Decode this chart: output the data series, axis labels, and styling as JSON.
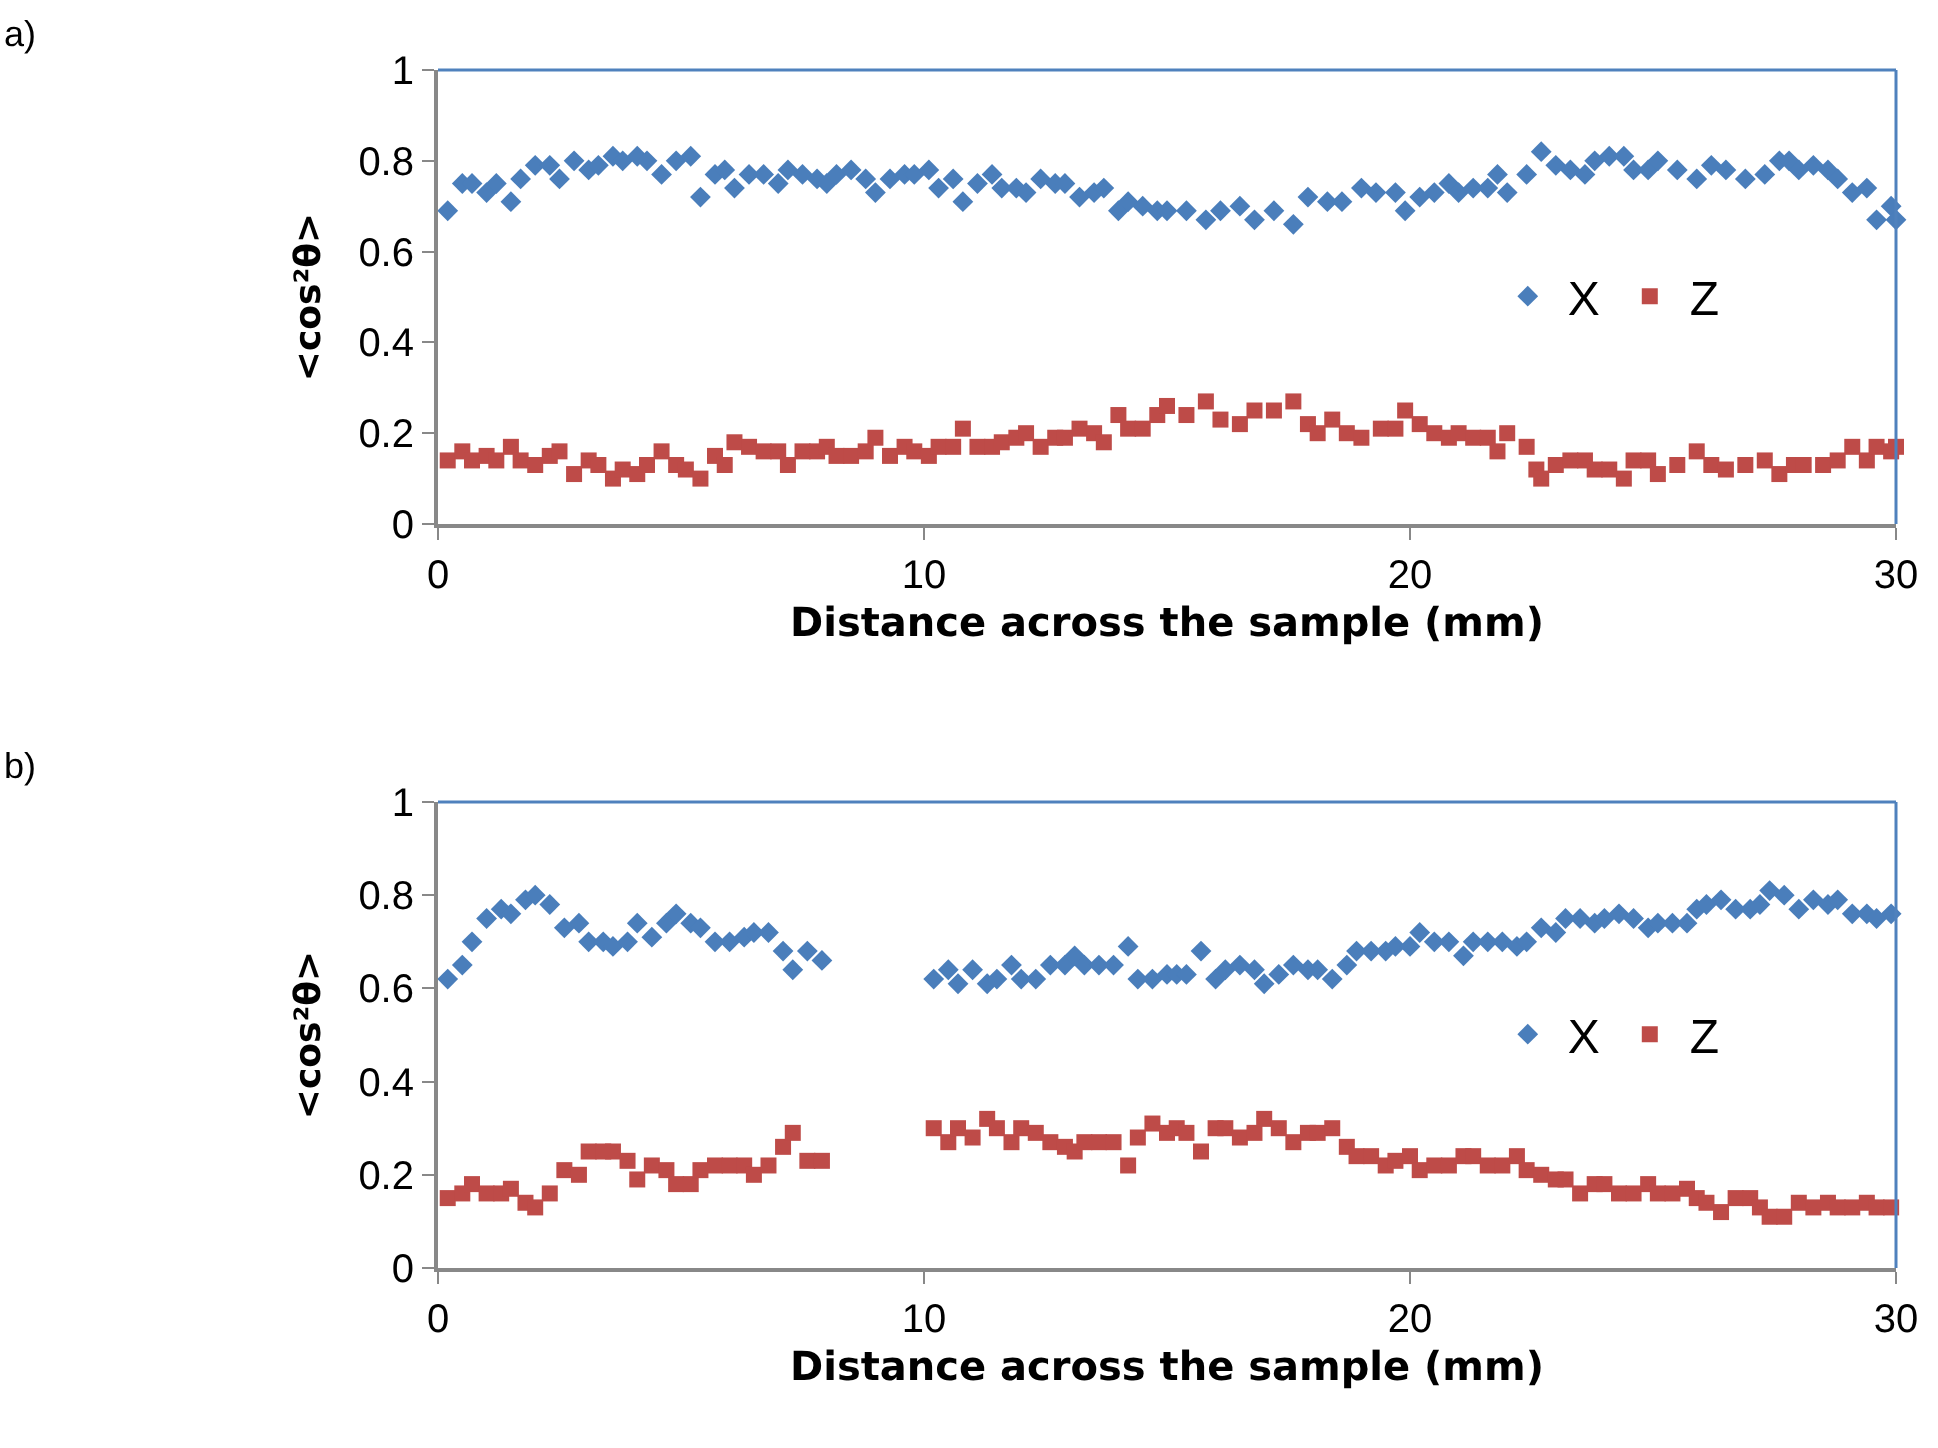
{
  "chart_data": [
    {
      "type": "scatter",
      "annotations": [
        "a)"
      ],
      "xlabel": "Distance across the sample (mm)",
      "ylabel": "<cos²θ>",
      "xlim": [
        0,
        30
      ],
      "xticks": [
        0,
        10,
        20,
        30
      ],
      "ylim": [
        0,
        1
      ],
      "yticks": [
        0,
        0.2,
        0.4,
        0.6,
        0.8,
        1
      ],
      "legend": "right",
      "series": [
        {
          "name": "X",
          "color": "#4a7ebb",
          "marker": "diamond",
          "x": [
            0.2,
            0.5,
            0.7,
            1.0,
            1.2,
            1.5,
            1.7,
            2.0,
            2.3,
            2.5,
            2.8,
            3.1,
            3.3,
            3.6,
            3.8,
            4.1,
            4.3,
            4.6,
            4.9,
            5.2,
            5.4,
            5.7,
            5.9,
            6.1,
            6.4,
            6.7,
            7.0,
            7.2,
            7.5,
            7.8,
            8.0,
            8.2,
            8.5,
            8.8,
            9.0,
            9.3,
            9.6,
            9.8,
            10.1,
            10.3,
            10.6,
            10.8,
            11.1,
            11.4,
            11.6,
            11.9,
            12.1,
            12.4,
            12.7,
            12.9,
            13.2,
            13.5,
            13.7,
            14.0,
            14.2,
            14.5,
            14.8,
            15.0,
            15.4,
            15.8,
            16.1,
            16.5,
            16.8,
            17.2,
            17.6,
            17.9,
            18.3,
            18.6,
            19.0,
            19.3,
            19.7,
            19.9,
            20.2,
            20.5,
            20.8,
            21.0,
            21.3,
            21.6,
            21.8,
            22.0,
            22.4,
            22.7,
            23.0,
            23.3,
            23.6,
            23.8,
            24.1,
            24.4,
            24.6,
            24.9,
            25.1,
            25.5,
            25.9,
            26.2,
            26.5,
            26.9,
            27.3,
            27.6,
            27.8,
            28.0,
            28.3,
            28.6,
            28.8,
            29.1,
            29.4,
            29.6,
            29.9,
            30.0
          ],
          "values": [
            0.69,
            0.75,
            0.75,
            0.73,
            0.75,
            0.71,
            0.76,
            0.79,
            0.79,
            0.76,
            0.8,
            0.78,
            0.79,
            0.81,
            0.8,
            0.81,
            0.8,
            0.77,
            0.8,
            0.81,
            0.72,
            0.77,
            0.78,
            0.74,
            0.77,
            0.77,
            0.75,
            0.78,
            0.77,
            0.76,
            0.75,
            0.77,
            0.78,
            0.76,
            0.73,
            0.76,
            0.77,
            0.77,
            0.78,
            0.74,
            0.76,
            0.71,
            0.75,
            0.77,
            0.74,
            0.74,
            0.73,
            0.76,
            0.75,
            0.75,
            0.72,
            0.73,
            0.74,
            0.69,
            0.71,
            0.7,
            0.69,
            0.69,
            0.69,
            0.67,
            0.69,
            0.7,
            0.67,
            0.69,
            0.66,
            0.72,
            0.71,
            0.71,
            0.74,
            0.73,
            0.73,
            0.69,
            0.72,
            0.73,
            0.75,
            0.73,
            0.74,
            0.74,
            0.77,
            0.73,
            0.77,
            0.82,
            0.79,
            0.78,
            0.77,
            0.8,
            0.81,
            0.81,
            0.78,
            0.78,
            0.8,
            0.78,
            0.76,
            0.79,
            0.78,
            0.76,
            0.77,
            0.8,
            0.8,
            0.78,
            0.79,
            0.78,
            0.76,
            0.73,
            0.74,
            0.67,
            0.7,
            0.67
          ]
        },
        {
          "name": "Z",
          "color": "#be4b48",
          "marker": "square",
          "x": [
            0.2,
            0.5,
            0.7,
            1.0,
            1.2,
            1.5,
            1.7,
            2.0,
            2.3,
            2.5,
            2.8,
            3.1,
            3.3,
            3.6,
            3.8,
            4.1,
            4.3,
            4.6,
            4.9,
            5.1,
            5.4,
            5.7,
            5.9,
            6.1,
            6.4,
            6.7,
            7.0,
            7.2,
            7.5,
            7.8,
            8.0,
            8.2,
            8.5,
            8.8,
            9.0,
            9.3,
            9.6,
            9.8,
            10.1,
            10.3,
            10.6,
            10.8,
            11.1,
            11.4,
            11.6,
            11.9,
            12.1,
            12.4,
            12.7,
            12.9,
            13.2,
            13.5,
            13.7,
            14.0,
            14.2,
            14.5,
            14.8,
            15.0,
            15.4,
            15.8,
            16.1,
            16.5,
            16.8,
            17.2,
            17.6,
            17.9,
            18.1,
            18.4,
            18.7,
            19.0,
            19.4,
            19.7,
            19.9,
            20.2,
            20.5,
            20.8,
            21.0,
            21.3,
            21.6,
            21.8,
            22.0,
            22.4,
            22.6,
            22.7,
            23.0,
            23.3,
            23.6,
            23.8,
            24.1,
            24.4,
            24.6,
            24.9,
            25.1,
            25.5,
            25.9,
            26.2,
            26.5,
            26.9,
            27.3,
            27.6,
            27.9,
            28.1,
            28.5,
            28.8,
            29.1,
            29.4,
            29.6,
            29.9,
            30.0
          ],
          "values": [
            0.14,
            0.16,
            0.14,
            0.15,
            0.14,
            0.17,
            0.14,
            0.13,
            0.15,
            0.16,
            0.11,
            0.14,
            0.13,
            0.1,
            0.12,
            0.11,
            0.13,
            0.16,
            0.13,
            0.12,
            0.1,
            0.15,
            0.13,
            0.18,
            0.17,
            0.16,
            0.16,
            0.13,
            0.16,
            0.16,
            0.17,
            0.15,
            0.15,
            0.16,
            0.19,
            0.15,
            0.17,
            0.16,
            0.15,
            0.17,
            0.17,
            0.21,
            0.17,
            0.17,
            0.18,
            0.19,
            0.2,
            0.17,
            0.19,
            0.19,
            0.21,
            0.2,
            0.18,
            0.24,
            0.21,
            0.21,
            0.24,
            0.26,
            0.24,
            0.27,
            0.23,
            0.22,
            0.25,
            0.25,
            0.27,
            0.22,
            0.2,
            0.23,
            0.2,
            0.19,
            0.21,
            0.21,
            0.25,
            0.22,
            0.2,
            0.19,
            0.2,
            0.19,
            0.19,
            0.16,
            0.2,
            0.17,
            0.12,
            0.1,
            0.13,
            0.14,
            0.14,
            0.12,
            0.12,
            0.1,
            0.14,
            0.14,
            0.11,
            0.13,
            0.16,
            0.13,
            0.12,
            0.13,
            0.14,
            0.11,
            0.13,
            0.13,
            0.13,
            0.14,
            0.17,
            0.14,
            0.17,
            0.16,
            0.17
          ]
        }
      ]
    },
    {
      "type": "scatter",
      "annotations": [
        "b)"
      ],
      "xlabel": "Distance across the sample (mm)",
      "ylabel": "<cos²θ>",
      "xlim": [
        0,
        30
      ],
      "xticks": [
        0,
        10,
        20,
        30
      ],
      "ylim": [
        0,
        1
      ],
      "yticks": [
        0,
        0.2,
        0.4,
        0.6,
        0.8,
        1
      ],
      "legend": "right",
      "x": [
        0.2,
        0.5,
        0.7,
        1.0,
        1.3,
        1.5,
        1.8,
        2.0,
        2.3,
        2.6,
        2.9,
        3.1,
        3.4,
        3.6,
        3.9,
        4.1,
        4.4,
        4.7,
        4.9,
        5.2,
        5.4,
        5.7,
        6.0,
        6.3,
        6.5,
        6.8,
        7.1,
        7.3,
        7.6,
        7.9,
        10.2,
        10.5,
        10.7,
        11.0,
        11.3,
        11.5,
        11.8,
        12.0,
        12.3,
        12.6,
        12.9,
        13.1,
        13.3,
        13.6,
        13.9,
        14.2,
        14.4,
        14.7,
        15.0,
        15.2,
        15.4,
        15.7,
        16.0,
        16.2,
        16.5,
        16.8,
        17.0,
        17.3,
        17.6,
        17.9,
        18.1,
        18.4,
        18.7,
        18.9,
        19.2,
        19.5,
        19.7,
        20.0,
        20.2,
        20.5,
        20.8,
        21.1,
        21.3,
        21.6,
        21.9,
        22.2,
        22.4,
        22.7,
        23.0,
        23.2,
        23.5,
        23.8,
        24.0,
        24.3,
        24.6,
        24.9,
        25.1,
        25.4,
        25.7,
        25.9,
        26.1,
        26.4,
        26.7,
        27.0,
        27.2,
        27.4,
        27.7,
        28.0,
        28.3,
        28.6,
        28.8,
        29.1,
        29.4,
        29.6,
        29.9
      ],
      "series": [
        {
          "name": "X",
          "color": "#4a7ebb",
          "marker": "diamond",
          "values": [
            0.62,
            0.65,
            0.7,
            0.75,
            0.77,
            0.76,
            0.79,
            0.8,
            0.78,
            0.73,
            0.74,
            0.7,
            0.7,
            0.69,
            0.7,
            0.74,
            0.71,
            0.74,
            0.76,
            0.74,
            0.73,
            0.7,
            0.7,
            0.71,
            0.72,
            0.72,
            0.68,
            0.64,
            0.68,
            0.66,
            0.62,
            0.64,
            0.61,
            0.64,
            0.61,
            0.62,
            0.65,
            0.62,
            0.62,
            0.65,
            0.65,
            0.67,
            0.65,
            0.65,
            0.65,
            0.69,
            0.62,
            0.62,
            0.63,
            0.63,
            0.63,
            0.68,
            0.62,
            0.64,
            0.65,
            0.64,
            0.61,
            0.63,
            0.65,
            0.64,
            0.64,
            0.62,
            0.65,
            0.68,
            0.68,
            0.68,
            0.69,
            0.69,
            0.72,
            0.7,
            0.7,
            0.67,
            0.7,
            0.7,
            0.7,
            0.69,
            0.7,
            0.73,
            0.72,
            0.75,
            0.75,
            0.74,
            0.75,
            0.76,
            0.75,
            0.73,
            0.74,
            0.74,
            0.74,
            0.77,
            0.78,
            0.79,
            0.77,
            0.77,
            0.78,
            0.81,
            0.8,
            0.77,
            0.79,
            0.78,
            0.79,
            0.76,
            0.76,
            0.75,
            0.76
          ]
        },
        {
          "name": "Z",
          "color": "#be4b48",
          "marker": "square",
          "values": [
            0.15,
            0.16,
            0.18,
            0.16,
            0.16,
            0.17,
            0.14,
            0.13,
            0.16,
            0.21,
            0.2,
            0.25,
            0.25,
            0.25,
            0.23,
            0.19,
            0.22,
            0.21,
            0.18,
            0.18,
            0.21,
            0.22,
            0.22,
            0.22,
            0.2,
            0.22,
            0.26,
            0.29,
            0.23,
            0.23,
            0.3,
            0.27,
            0.3,
            0.28,
            0.32,
            0.3,
            0.27,
            0.3,
            0.29,
            0.27,
            0.26,
            0.25,
            0.27,
            0.27,
            0.27,
            0.22,
            0.28,
            0.31,
            0.29,
            0.3,
            0.29,
            0.25,
            0.3,
            0.3,
            0.28,
            0.29,
            0.32,
            0.3,
            0.27,
            0.29,
            0.29,
            0.3,
            0.26,
            0.24,
            0.24,
            0.22,
            0.23,
            0.24,
            0.21,
            0.22,
            0.22,
            0.24,
            0.24,
            0.22,
            0.22,
            0.24,
            0.21,
            0.2,
            0.19,
            0.19,
            0.16,
            0.18,
            0.18,
            0.16,
            0.16,
            0.18,
            0.16,
            0.16,
            0.17,
            0.15,
            0.14,
            0.12,
            0.15,
            0.15,
            0.13,
            0.11,
            0.11,
            0.14,
            0.13,
            0.14,
            0.13,
            0.13,
            0.14,
            0.13,
            0.13
          ]
        }
      ]
    }
  ]
}
